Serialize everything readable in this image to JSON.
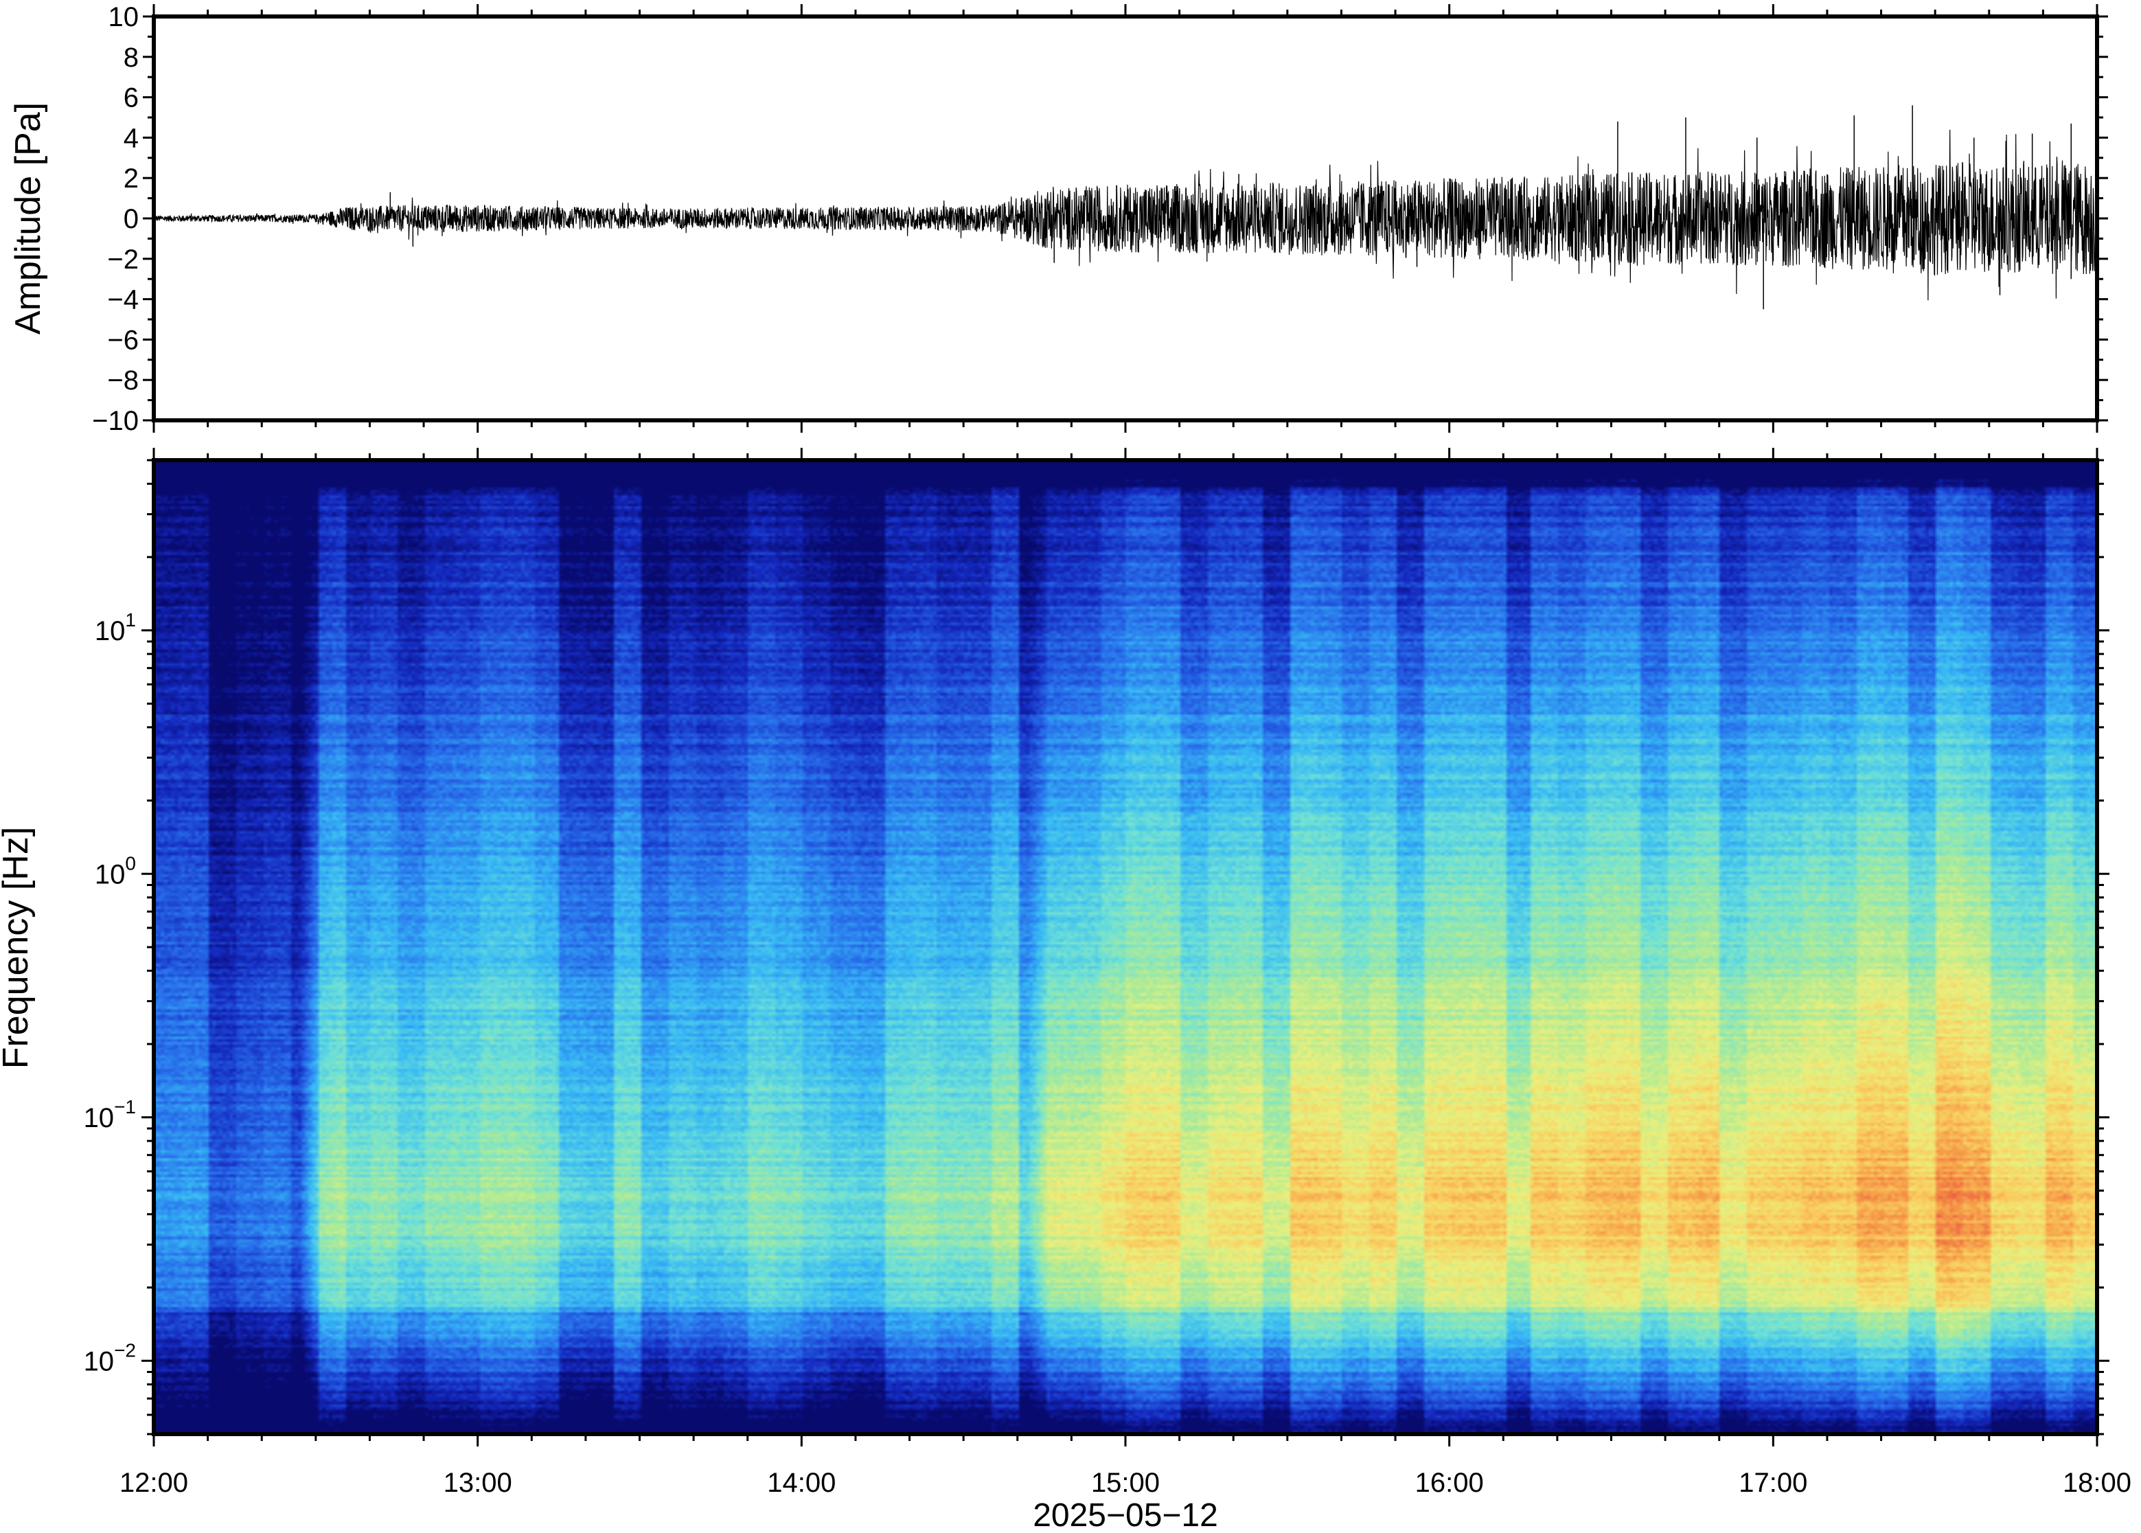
{
  "chart_data": [
    {
      "type": "line",
      "panel": "waveform",
      "ylabel": "Amplitude [Pa]",
      "ylim": [
        -10,
        10
      ],
      "yticks": [
        10,
        8,
        6,
        4,
        2,
        0,
        -2,
        -4,
        -6,
        -8,
        -10
      ],
      "ytick_labels": [
        "10",
        "8",
        "6",
        "4",
        "2",
        "0",
        "−2",
        "−4",
        "−6",
        "−8",
        "−10"
      ],
      "x_range_hours": [
        12,
        18
      ],
      "envelope": {
        "time_hours": [
          12.0,
          12.5,
          12.6,
          12.9,
          13.5,
          14.0,
          14.4,
          14.6,
          14.75,
          15.0,
          15.5,
          16.0,
          16.3,
          16.5,
          16.8,
          17.0,
          17.3,
          17.5,
          17.8,
          18.0
        ],
        "half_amplitude_pa": [
          0.15,
          0.2,
          0.6,
          0.7,
          0.5,
          0.55,
          0.6,
          0.7,
          1.5,
          1.7,
          1.8,
          2.0,
          2.1,
          2.3,
          2.3,
          2.4,
          2.6,
          2.8,
          2.7,
          2.9
        ]
      },
      "peaks": [
        {
          "t": 12.73,
          "a": 1.3
        },
        {
          "t": 12.8,
          "a": -1.4
        },
        {
          "t": 14.78,
          "a": -2.2
        },
        {
          "t": 15.35,
          "a": 2.2
        },
        {
          "t": 15.9,
          "a": -2.4
        },
        {
          "t": 16.52,
          "a": 4.8
        },
        {
          "t": 16.73,
          "a": 5.0
        },
        {
          "t": 16.95,
          "a": 4.0
        },
        {
          "t": 16.97,
          "a": -4.5
        },
        {
          "t": 17.25,
          "a": 5.1
        },
        {
          "t": 17.43,
          "a": 5.6
        },
        {
          "t": 17.62,
          "a": 4.0
        },
        {
          "t": 17.7,
          "a": -3.8
        },
        {
          "t": 17.8,
          "a": 4.2
        },
        {
          "t": 17.92,
          "a": 4.7
        },
        {
          "t": 17.92,
          "a": -3.0
        }
      ]
    },
    {
      "type": "heatmap",
      "panel": "spectrogram",
      "ylabel": "Frequency [Hz]",
      "yscale": "log",
      "ylim_hz": [
        0.005,
        50
      ],
      "yticks": [
        {
          "base": "10",
          "exp": "1",
          "value": 10
        },
        {
          "base": "10",
          "exp": "0",
          "value": 1
        },
        {
          "base": "10",
          "exp": "−1",
          "value": 0.1
        },
        {
          "base": "10",
          "exp": "−2",
          "value": 0.01
        }
      ],
      "colormap": "rainbow (blue=low power, red=high power)",
      "x_range_hours": [
        12,
        18
      ],
      "power_level_by_time": {
        "time_hours": [
          12.0,
          12.45,
          12.5,
          12.6,
          13.0,
          13.5,
          14.0,
          14.5,
          14.7,
          14.75,
          15.0,
          15.5,
          16.0,
          16.5,
          17.0,
          17.3,
          17.5,
          18.0
        ],
        "relative_level": [
          0.0,
          0.0,
          0.35,
          0.45,
          0.42,
          0.38,
          0.4,
          0.45,
          0.45,
          0.7,
          0.72,
          0.74,
          0.76,
          0.8,
          0.82,
          0.86,
          0.9,
          0.88
        ]
      }
    }
  ],
  "x_axis": {
    "tick_labels": [
      "12:00",
      "13:00",
      "14:00",
      "15:00",
      "16:00",
      "17:00",
      "18:00"
    ],
    "tick_hours": [
      12,
      13,
      14,
      15,
      16,
      17,
      18
    ],
    "date_label": "2025−05−12"
  }
}
